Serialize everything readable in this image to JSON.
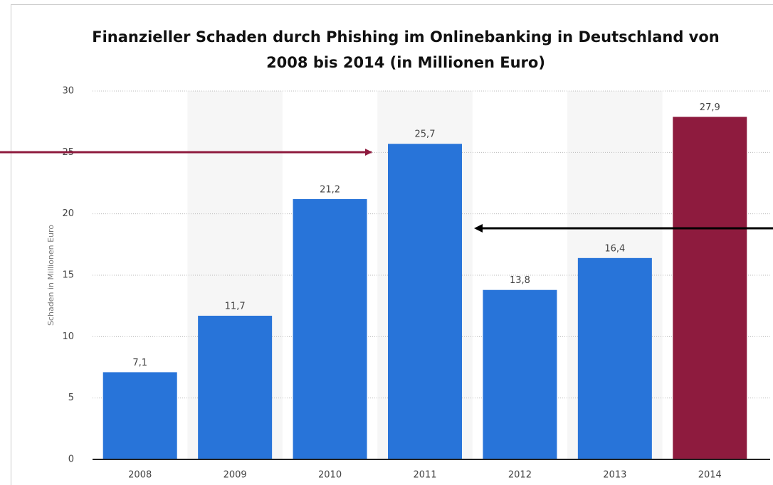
{
  "chart_data": {
    "type": "bar",
    "title": "Finanzieller Schaden durch Phishing im Onlinebanking in Deutschland von 2008 bis 2014 (in Millionen Euro)",
    "y_label": "Schaden in Millionen Euro",
    "categories": [
      "2008",
      "2009",
      "2010",
      "2011",
      "2012",
      "2013",
      "2014"
    ],
    "values": [
      7.1,
      11.7,
      21.2,
      25.7,
      13.8,
      16.4,
      27.9
    ],
    "value_labels": [
      "7,1",
      "11,7",
      "21,2",
      "25,7",
      "13,8",
      "16,4",
      "27,9"
    ],
    "colors": [
      "#2874d9",
      "#2874d9",
      "#2874d9",
      "#2874d9",
      "#2874d9",
      "#2874d9",
      "#8e1b3e"
    ],
    "ylim": [
      0,
      30
    ],
    "yticks": [
      0,
      5,
      10,
      15,
      20,
      25,
      30
    ],
    "grid": true
  }
}
